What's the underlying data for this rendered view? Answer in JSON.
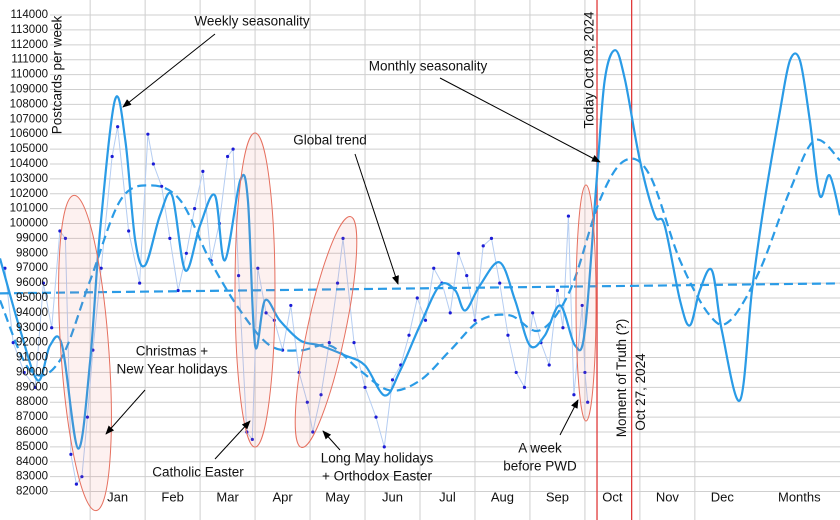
{
  "chart_data": {
    "type": "line",
    "y_label": "Postcards per week",
    "xlim": [
      -1.64,
      13.64
    ],
    "ylim": [
      81500,
      114500
    ],
    "yticks": [
      82000,
      83000,
      84000,
      85000,
      86000,
      87000,
      88000,
      89000,
      90000,
      91000,
      92000,
      93000,
      94000,
      95000,
      96000,
      97000,
      98000,
      99000,
      100000,
      101000,
      102000,
      103000,
      104000,
      105000,
      106000,
      107000,
      108000,
      109000,
      110000,
      111000,
      112000,
      113000,
      114000
    ],
    "xticks": [
      {
        "value": 0.5,
        "label": "Jan"
      },
      {
        "value": 1.5,
        "label": "Feb"
      },
      {
        "value": 2.5,
        "label": "Mar"
      },
      {
        "value": 3.5,
        "label": "Apr"
      },
      {
        "value": 4.5,
        "label": "May"
      },
      {
        "value": 5.5,
        "label": "Jun"
      },
      {
        "value": 6.5,
        "label": "Jul"
      },
      {
        "value": 7.5,
        "label": "Aug"
      },
      {
        "value": 8.5,
        "label": "Sep"
      },
      {
        "value": 9.5,
        "label": "Oct"
      },
      {
        "value": 10.5,
        "label": "Nov"
      },
      {
        "value": 11.5,
        "label": "Dec"
      },
      {
        "value": 12.9,
        "label": "Months"
      }
    ],
    "grid": true,
    "points": {
      "color": "#1b1bd6",
      "line_color": "#b5cdf2",
      "x": [
        -1.55,
        -1.4,
        -1.2,
        -1.0,
        -0.85,
        -0.7,
        -0.55,
        -0.45,
        -0.35,
        -0.25,
        -0.15,
        -0.05,
        0.05,
        0.2,
        0.4,
        0.5,
        0.7,
        0.9,
        1.05,
        1.15,
        1.3,
        1.45,
        1.6,
        1.75,
        1.9,
        2.05,
        2.2,
        2.35,
        2.5,
        2.6,
        2.7,
        2.85,
        2.95,
        3.05,
        3.2,
        3.35,
        3.5,
        3.65,
        3.8,
        3.95,
        4.05,
        4.2,
        4.35,
        4.5,
        4.6,
        4.8,
        5.0,
        5.2,
        5.35,
        5.5,
        5.65,
        5.8,
        5.95,
        6.1,
        6.25,
        6.4,
        6.55,
        6.7,
        6.85,
        7.0,
        7.15,
        7.3,
        7.45,
        7.6,
        7.75,
        7.9,
        8.05,
        8.2,
        8.35,
        8.5,
        8.6,
        8.7,
        8.8,
        8.95,
        9.0,
        9.05
      ],
      "values": [
        97000,
        92000,
        90000,
        89000,
        96000,
        93000,
        99500,
        99000,
        84500,
        82500,
        83000,
        87000,
        91500,
        97000,
        104500,
        106500,
        99500,
        96000,
        106000,
        104000,
        102500,
        99000,
        95500,
        98000,
        101000,
        103500,
        97500,
        100000,
        104500,
        105000,
        96500,
        86000,
        85500,
        97000,
        94000,
        93500,
        91500,
        94500,
        90000,
        88000,
        86000,
        88500,
        92000,
        96000,
        99000,
        92000,
        89000,
        87000,
        85000,
        89500,
        90500,
        92500,
        95000,
        93500,
        97000,
        96000,
        94000,
        98000,
        96500,
        93500,
        98500,
        99000,
        96000,
        92500,
        90000,
        89000,
        94000,
        92000,
        90500,
        95500,
        93000,
        100500,
        88500,
        94500,
        90000,
        88000
      ]
    },
    "series": [
      {
        "name": "Weekly seasonality",
        "color": "#2a9be6",
        "style": "solid",
        "x": [
          -1.64,
          -1.27,
          -0.95,
          -0.73,
          -0.51,
          -0.22,
          0,
          0.18,
          0.45,
          0.64,
          0.82,
          1.0,
          1.27,
          1.49,
          1.73,
          2.0,
          2.27,
          2.45,
          2.73,
          2.87,
          3.0,
          3.18,
          3.45,
          3.82,
          4.18,
          4.64,
          5.0,
          5.36,
          5.64,
          6.0,
          6.36,
          6.64,
          6.82,
          7.09,
          7.45,
          7.73,
          8.0,
          8.27,
          8.55,
          8.82,
          9.0,
          9.22,
          9.36,
          9.55,
          9.73,
          10.0,
          10.27,
          10.45,
          10.73,
          10.91,
          11.09,
          11.31,
          11.49,
          11.82,
          12.04,
          12.27,
          12.55,
          12.73,
          12.91,
          13.09,
          13.27,
          13.45,
          13.64
        ],
        "values": [
          97660,
          92820,
          89460,
          91810,
          91810,
          84890,
          90800,
          99540,
          108280,
          105590,
          98870,
          97190,
          100550,
          101890,
          96850,
          99880,
          101890,
          97520,
          102900,
          101560,
          91810,
          94840,
          93490,
          92150,
          91810,
          91140,
          90470,
          88450,
          90130,
          93160,
          95840,
          95510,
          94160,
          95840,
          97390,
          94840,
          91810,
          92480,
          94500,
          91810,
          92820,
          103240,
          109620,
          111640,
          109620,
          104240,
          100550,
          99880,
          94840,
          93160,
          95510,
          96850,
          92820,
          88120,
          95510,
          101560,
          107600,
          110960,
          110960,
          106930,
          101890,
          103240,
          100550
        ]
      },
      {
        "name": "Monthly seasonality",
        "color": "#2a9be6",
        "style": "dashed",
        "x": [
          -1.64,
          -1.09,
          -0.55,
          0,
          0.55,
          1.09,
          1.64,
          2.18,
          2.73,
          3.27,
          3.82,
          4.36,
          4.91,
          5.45,
          6.0,
          6.55,
          7.09,
          7.64,
          8.18,
          8.73,
          9.27,
          9.73,
          10.18,
          10.73,
          11.27,
          11.64,
          12.18,
          12.73,
          13.18,
          13.64
        ],
        "values": [
          94840,
          90130,
          90800,
          96180,
          101560,
          102560,
          101560,
          97520,
          94160,
          91810,
          91480,
          91810,
          90130,
          88790,
          89460,
          91480,
          93490,
          93830,
          92820,
          95510,
          101560,
          104240,
          103240,
          97520,
          93830,
          93490,
          96850,
          102230,
          105590,
          104240
        ]
      },
      {
        "name": "Global trend",
        "color": "#2a9be6",
        "style": "dashed",
        "x": [
          -1.64,
          13.64
        ],
        "values": [
          95310,
          95980
        ]
      }
    ],
    "markers": [
      {
        "x": 9.22,
        "color": "#e03a3a",
        "labels": [
          "Today Oct 08, 2024"
        ]
      },
      {
        "x": 9.85,
        "color": "#e03a3a",
        "labels": [
          "Moment of Truth (?)",
          "Oct 27, 2024"
        ]
      }
    ],
    "annotations": [
      {
        "lines": [
          "Christmas +",
          "New Year holidays"
        ]
      },
      {
        "lines": [
          "Catholic Easter"
        ]
      },
      {
        "lines": [
          "Long May holidays",
          "+ Orthodox Easter"
        ]
      },
      {
        "lines": [
          "A week",
          "before PWD"
        ]
      }
    ]
  }
}
